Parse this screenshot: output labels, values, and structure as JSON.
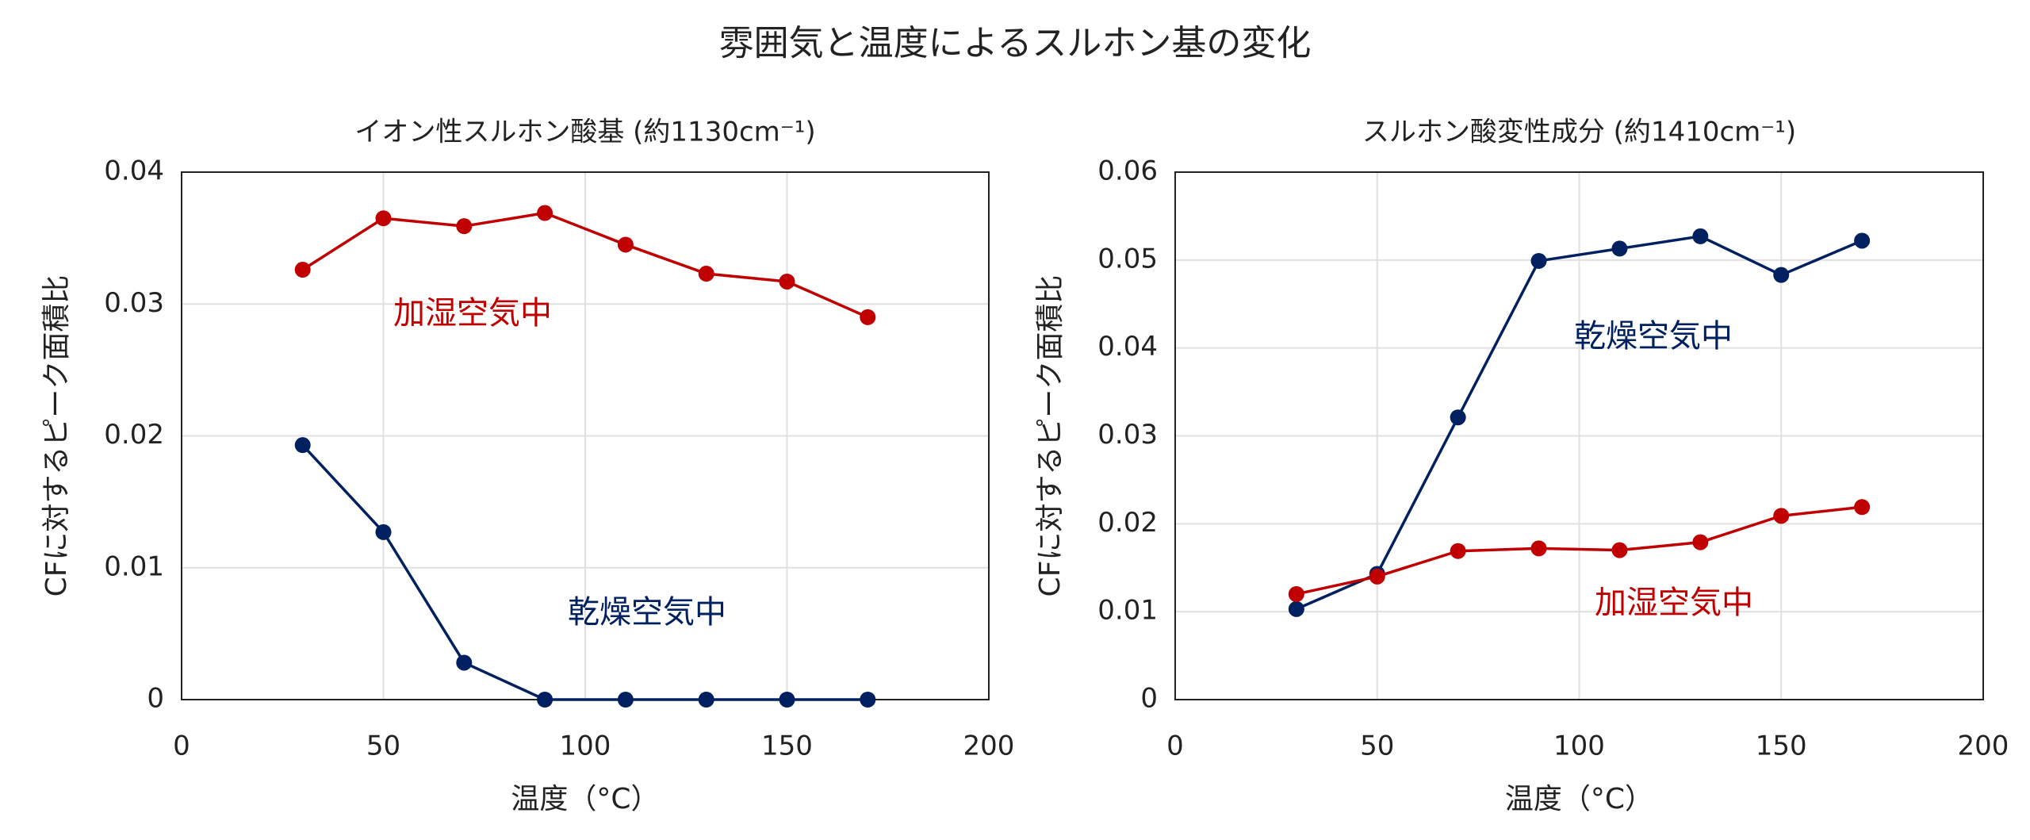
{
  "title": "雰囲気と温度によるスルホン基の変化",
  "chart_data": [
    {
      "type": "line",
      "title": "イオン性スルホン酸基 (約1130cm⁻¹)",
      "x_label": "温度（°C）",
      "y_label": "CFに対するピーク面積比",
      "x": [
        30,
        50,
        70,
        90,
        110,
        130,
        150,
        170
      ],
      "series": [
        {
          "name": "加湿空気中",
          "color": "#c00000",
          "values": [
            0.0326,
            0.0365,
            0.0359,
            0.0369,
            0.0345,
            0.0323,
            0.0317,
            0.029
          ]
        },
        {
          "name": "乾燥空気中",
          "color": "#002060",
          "values": [
            0.0193,
            0.0127,
            0.0028,
            0,
            0,
            0,
            0,
            0
          ]
        }
      ],
      "xlim": [
        0,
        200
      ],
      "xticks": [
        0,
        50,
        100,
        150,
        200
      ],
      "ylim": [
        0,
        0.04
      ],
      "yticks": [
        0,
        0.01,
        0.02,
        0.03,
        0.04
      ],
      "grid": true
    },
    {
      "type": "line",
      "title": "スルホン酸変性成分 (約1410cm⁻¹)",
      "x_label": "温度（°C）",
      "y_label": "CFに対するピーク面積比",
      "x": [
        30,
        50,
        70,
        90,
        110,
        130,
        150,
        170
      ],
      "series": [
        {
          "name": "乾燥空気中",
          "color": "#002060",
          "values": [
            0.0103,
            0.0143,
            0.0321,
            0.0499,
            0.0513,
            0.0527,
            0.0483,
            0.0522
          ]
        },
        {
          "name": "加湿空気中",
          "color": "#c00000",
          "values": [
            0.012,
            0.014,
            0.0169,
            0.0172,
            0.017,
            0.0179,
            0.0209,
            0.0219
          ]
        }
      ],
      "xlim": [
        0,
        200
      ],
      "xticks": [
        0,
        50,
        100,
        150,
        200
      ],
      "ylim": [
        0,
        0.06
      ],
      "yticks": [
        0,
        0.01,
        0.02,
        0.03,
        0.04,
        0.05,
        0.06
      ],
      "grid": true
    }
  ]
}
